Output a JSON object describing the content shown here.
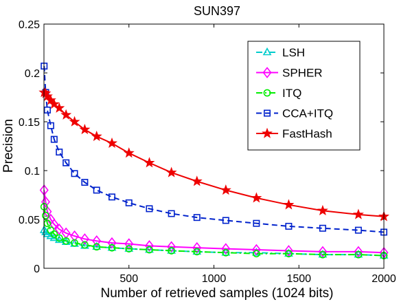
{
  "chart_data": {
    "type": "line",
    "title": "SUN397",
    "xlabel": "Number of retrieved samples (1024 bits)",
    "ylabel": "Precision",
    "xlim": [
      0,
      2000
    ],
    "ylim": [
      0,
      0.25
    ],
    "xticks": [
      500,
      1000,
      1500,
      2000
    ],
    "yticks": [
      0,
      0.05,
      0.1,
      0.15,
      0.2,
      0.25
    ],
    "xtick_labels": [
      "500",
      "1000",
      "1500",
      "2000"
    ],
    "ytick_labels": [
      "0",
      "0.05",
      "0.1",
      "0.15",
      "0.2",
      "0.25"
    ],
    "grid": false,
    "legend_position": "top-right",
    "x": [
      1,
      10,
      20,
      40,
      60,
      90,
      130,
      180,
      240,
      310,
      400,
      500,
      620,
      750,
      900,
      1070,
      1250,
      1440,
      1640,
      1850,
      2000
    ],
    "series": [
      {
        "name": "LSH",
        "color": "#00cccc",
        "line_style": "dash-dot",
        "marker": "triangle",
        "values": [
          0.039,
          0.037,
          0.035,
          0.033,
          0.031,
          0.029,
          0.027,
          0.025,
          0.023,
          0.022,
          0.021,
          0.02,
          0.019,
          0.018,
          0.017,
          0.016,
          0.016,
          0.015,
          0.014,
          0.014,
          0.013
        ]
      },
      {
        "name": "SPHER",
        "color": "#ff00ff",
        "line_style": "solid",
        "marker": "diamond",
        "values": [
          0.08,
          0.068,
          0.058,
          0.05,
          0.045,
          0.04,
          0.036,
          0.033,
          0.03,
          0.028,
          0.026,
          0.025,
          0.023,
          0.022,
          0.021,
          0.02,
          0.019,
          0.018,
          0.017,
          0.017,
          0.016
        ]
      },
      {
        "name": "ITQ",
        "color": "#00ee00",
        "line_style": "dash-dot",
        "marker": "circle",
        "values": [
          0.063,
          0.054,
          0.046,
          0.039,
          0.035,
          0.031,
          0.028,
          0.026,
          0.024,
          0.022,
          0.021,
          0.02,
          0.019,
          0.018,
          0.017,
          0.016,
          0.015,
          0.015,
          0.014,
          0.014,
          0.013
        ]
      },
      {
        "name": "CCA+ITQ",
        "color": "#0022cc",
        "line_style": "dashed",
        "marker": "square",
        "values": [
          0.207,
          0.18,
          0.162,
          0.146,
          0.132,
          0.119,
          0.108,
          0.097,
          0.088,
          0.08,
          0.073,
          0.067,
          0.061,
          0.056,
          0.052,
          0.049,
          0.046,
          0.043,
          0.041,
          0.039,
          0.037
        ]
      },
      {
        "name": "FastHash",
        "color": "#ee0000",
        "line_style": "solid",
        "marker": "star",
        "values": [
          0.18,
          0.179,
          0.176,
          0.172,
          0.168,
          0.164,
          0.157,
          0.15,
          0.142,
          0.135,
          0.128,
          0.118,
          0.108,
          0.098,
          0.089,
          0.08,
          0.072,
          0.065,
          0.059,
          0.055,
          0.053
        ]
      }
    ]
  }
}
